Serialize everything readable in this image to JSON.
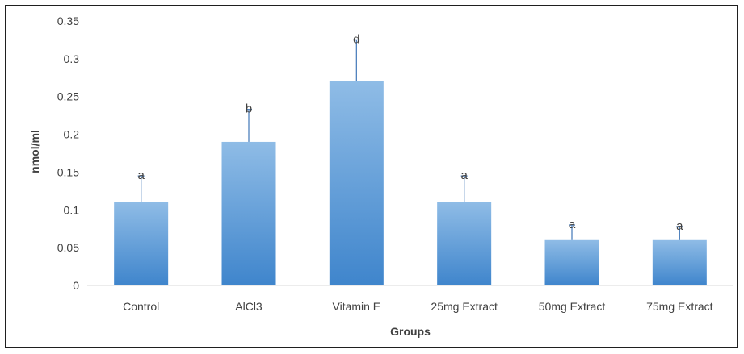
{
  "chart_data": {
    "type": "bar",
    "title": "",
    "xlabel": "Groups",
    "ylabel": "nmol/ml",
    "ylim": [
      0,
      0.35
    ],
    "yticks": [
      "0",
      "0.05",
      "0.1",
      "0.15",
      "0.2",
      "0.25",
      "0.3",
      "0.35"
    ],
    "grid": false,
    "categories": [
      "Control",
      "AlCl3",
      "Vitamin E",
      "25mg Extract",
      "50mg Extract",
      "75mg Extract"
    ],
    "values": [
      0.11,
      0.19,
      0.27,
      0.11,
      0.06,
      0.06
    ],
    "error_upper": [
      0.035,
      0.043,
      0.055,
      0.035,
      0.02,
      0.018
    ],
    "annotations": [
      "a",
      "b",
      "d",
      "a",
      "a",
      "a"
    ],
    "colors": {
      "bar_top": "#8fbce6",
      "bar_bottom": "#3f85cc",
      "error_bar": "#4f81bd",
      "axis": "#d9d9d9"
    }
  }
}
